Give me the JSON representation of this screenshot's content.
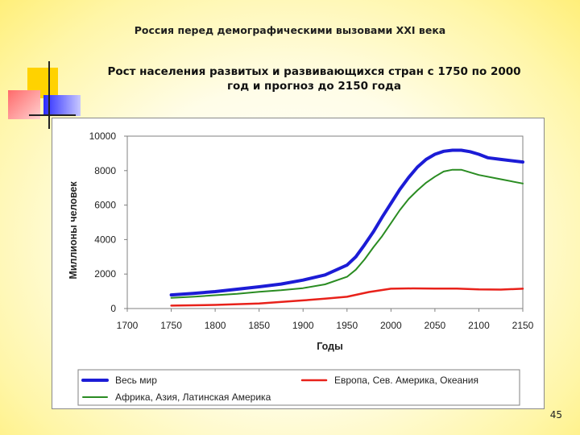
{
  "slide": {
    "header": "Россия перед демографическими вызовами XXI века",
    "title_line1": "Рост населения развитых и развивающихся стран с 1750 по 2000",
    "title_line2": "год и прогноз до 2150 года",
    "page_number": "45"
  },
  "chart_data": {
    "type": "line",
    "xlabel": "Годы",
    "ylabel": "Миллионы человек",
    "xlim": [
      1700,
      2150
    ],
    "ylim": [
      0,
      10000
    ],
    "x_ticks": [
      "1700",
      "1750",
      "1800",
      "1850",
      "1900",
      "1950",
      "2000",
      "2050",
      "2100",
      "2150"
    ],
    "y_ticks": [
      "0",
      "2000",
      "4000",
      "6000",
      "8000",
      "10000"
    ],
    "grid": false,
    "legend_position": "bottom",
    "series": [
      {
        "name": "Весь мир",
        "color": "#1c1cd6",
        "x": [
          1750,
          1775,
          1800,
          1825,
          1850,
          1875,
          1900,
          1925,
          1950,
          1960,
          1970,
          1980,
          1990,
          2000,
          2010,
          2020,
          2030,
          2040,
          2050,
          2060,
          2070,
          2080,
          2090,
          2100,
          2110,
          2125,
          2150
        ],
        "y": [
          790,
          880,
          980,
          1120,
          1260,
          1420,
          1650,
          1950,
          2520,
          3000,
          3700,
          4450,
          5300,
          6100,
          6900,
          7600,
          8200,
          8650,
          8950,
          9120,
          9180,
          9180,
          9100,
          8950,
          8750,
          8650,
          8500
        ]
      },
      {
        "name": "Европа, Сев. Америка, Океания",
        "color": "#e8211a",
        "x": [
          1750,
          1800,
          1850,
          1900,
          1925,
          1950,
          1975,
          2000,
          2025,
          2050,
          2075,
          2100,
          2125,
          2150
        ],
        "y": [
          170,
          210,
          290,
          470,
          570,
          680,
          960,
          1150,
          1170,
          1160,
          1160,
          1110,
          1100,
          1150
        ]
      },
      {
        "name": "Африка, Азия, Латинская Америка",
        "color": "#2a8c22",
        "x": [
          1750,
          1775,
          1800,
          1825,
          1850,
          1875,
          1900,
          1925,
          1950,
          1960,
          1970,
          1980,
          1990,
          2000,
          2010,
          2020,
          2030,
          2040,
          2050,
          2060,
          2070,
          2080,
          2090,
          2100,
          2125,
          2150
        ],
        "y": [
          620,
          680,
          770,
          850,
          970,
          1060,
          1180,
          1400,
          1840,
          2250,
          2850,
          3550,
          4200,
          4950,
          5700,
          6350,
          6850,
          7300,
          7650,
          7950,
          8050,
          8050,
          7900,
          7750,
          7500,
          7250
        ]
      }
    ]
  }
}
